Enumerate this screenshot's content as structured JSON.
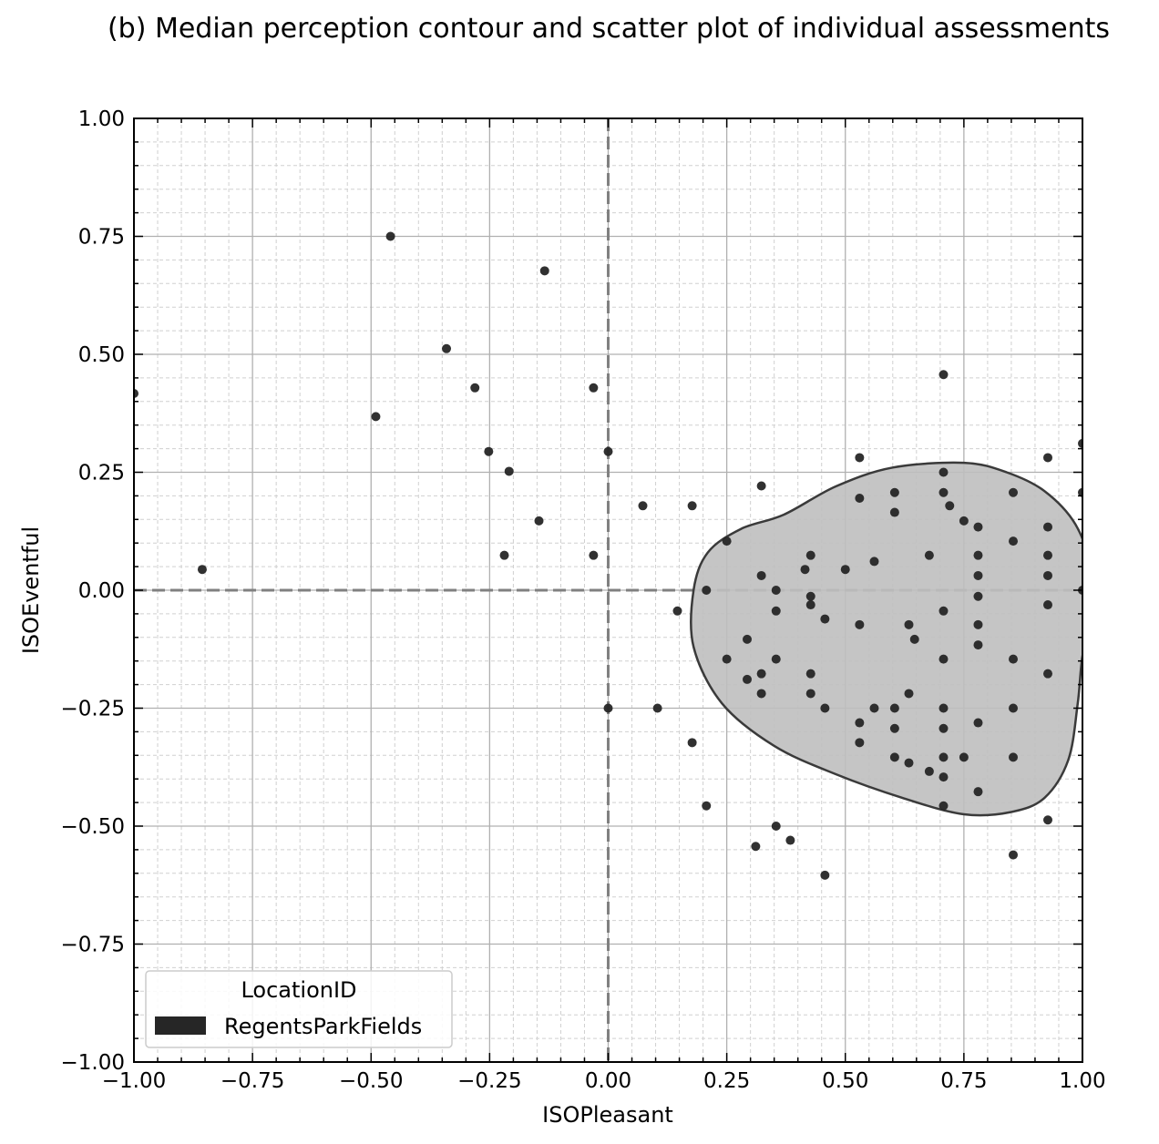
{
  "chart_data": {
    "type": "scatter",
    "title": "(b) Median perception contour and scatter plot of individual assessments",
    "xlabel": "ISOPleasant",
    "ylabel": "ISOEventful",
    "xlim": [
      -1.0,
      1.0
    ],
    "ylim": [
      -1.0,
      1.0
    ],
    "x_ticks": [
      -1.0,
      -0.75,
      -0.5,
      -0.25,
      0.0,
      0.25,
      0.5,
      0.75,
      1.0
    ],
    "y_ticks": [
      -1.0,
      -0.75,
      -0.5,
      -0.25,
      0.0,
      0.25,
      0.5,
      0.75,
      1.0
    ],
    "x_tick_labels": [
      "−1.00",
      "−0.75",
      "−0.50",
      "−0.25",
      "0.00",
      "0.25",
      "0.50",
      "0.75",
      "1.00"
    ],
    "y_tick_labels": [
      "−1.00",
      "−0.75",
      "−0.50",
      "−0.25",
      "0.00",
      "0.25",
      "0.50",
      "0.75",
      "1.00"
    ],
    "grid": true,
    "minor_grid": true,
    "reference_lines": {
      "x": 0.0,
      "y": 0.0,
      "style": "dashed"
    },
    "legend": {
      "title": "LocationID",
      "entries": [
        "RegentsParkFields"
      ],
      "placement": "lower-left"
    },
    "colors": {
      "points": "#262626",
      "contour_fill": "#bfbfbf",
      "contour_line": "#3a3a3a",
      "reference": "#808080"
    },
    "series": [
      {
        "name": "RegentsParkFields",
        "points": [
          [
            -1.0,
            0.417
          ],
          [
            -0.856,
            0.044
          ],
          [
            -0.459,
            0.75
          ],
          [
            -0.49,
            0.368
          ],
          [
            -0.341,
            0.512
          ],
          [
            -0.281,
            0.429
          ],
          [
            -0.252,
            0.294
          ],
          [
            -0.209,
            0.252
          ],
          [
            -0.219,
            0.074
          ],
          [
            -0.146,
            0.147
          ],
          [
            -0.134,
            0.677
          ],
          [
            -0.031,
            0.429
          ],
          [
            -0.031,
            0.074
          ],
          [
            0.0,
            0.294
          ],
          [
            0.0,
            -0.25
          ],
          [
            0.073,
            0.179
          ],
          [
            0.177,
            0.179
          ],
          [
            0.146,
            -0.044
          ],
          [
            0.104,
            -0.25
          ],
          [
            0.177,
            -0.323
          ],
          [
            0.207,
            -0.457
          ],
          [
            0.25,
            0.104
          ],
          [
            0.323,
            0.221
          ],
          [
            0.207,
            0.0
          ],
          [
            0.25,
            -0.146
          ],
          [
            0.293,
            -0.104
          ],
          [
            0.293,
            -0.189
          ],
          [
            0.323,
            0.031
          ],
          [
            0.323,
            -0.177
          ],
          [
            0.323,
            -0.219
          ],
          [
            0.354,
            0.0
          ],
          [
            0.354,
            -0.044
          ],
          [
            0.354,
            -0.146
          ],
          [
            0.354,
            -0.5
          ],
          [
            0.311,
            -0.543
          ],
          [
            0.384,
            -0.53
          ],
          [
            0.457,
            -0.604
          ],
          [
            0.415,
            0.044
          ],
          [
            0.427,
            0.074
          ],
          [
            0.427,
            -0.013
          ],
          [
            0.427,
            -0.031
          ],
          [
            0.427,
            -0.177
          ],
          [
            0.427,
            -0.219
          ],
          [
            0.457,
            -0.061
          ],
          [
            0.457,
            -0.25
          ],
          [
            0.5,
            0.044
          ],
          [
            0.53,
            0.281
          ],
          [
            0.53,
            0.195
          ],
          [
            0.53,
            -0.073
          ],
          [
            0.53,
            -0.281
          ],
          [
            0.53,
            -0.323
          ],
          [
            0.561,
            0.061
          ],
          [
            0.561,
            -0.25
          ],
          [
            0.604,
            0.207
          ],
          [
            0.604,
            0.165
          ],
          [
            0.604,
            -0.25
          ],
          [
            0.604,
            -0.293
          ],
          [
            0.604,
            -0.354
          ],
          [
            0.634,
            -0.073
          ],
          [
            0.634,
            -0.219
          ],
          [
            0.634,
            -0.366
          ],
          [
            0.646,
            -0.104
          ],
          [
            0.677,
            0.074
          ],
          [
            0.677,
            -0.384
          ],
          [
            0.707,
            0.457
          ],
          [
            0.707,
            0.25
          ],
          [
            0.707,
            0.207
          ],
          [
            0.707,
            -0.044
          ],
          [
            0.707,
            -0.146
          ],
          [
            0.707,
            -0.25
          ],
          [
            0.707,
            -0.293
          ],
          [
            0.707,
            -0.354
          ],
          [
            0.707,
            -0.396
          ],
          [
            0.707,
            -0.457
          ],
          [
            0.72,
            0.179
          ],
          [
            0.75,
            0.147
          ],
          [
            0.75,
            -0.354
          ],
          [
            0.78,
            0.134
          ],
          [
            0.78,
            0.074
          ],
          [
            0.78,
            0.031
          ],
          [
            0.78,
            -0.013
          ],
          [
            0.78,
            -0.073
          ],
          [
            0.78,
            -0.116
          ],
          [
            0.78,
            -0.281
          ],
          [
            0.78,
            -0.427
          ],
          [
            0.854,
            0.207
          ],
          [
            0.854,
            0.104
          ],
          [
            0.854,
            -0.146
          ],
          [
            0.854,
            -0.25
          ],
          [
            0.854,
            -0.354
          ],
          [
            0.854,
            -0.561
          ],
          [
            0.927,
            0.281
          ],
          [
            0.927,
            0.134
          ],
          [
            0.927,
            0.074
          ],
          [
            0.927,
            0.031
          ],
          [
            0.927,
            -0.031
          ],
          [
            0.927,
            -0.177
          ],
          [
            0.927,
            -0.487
          ],
          [
            1.0,
            0.311
          ],
          [
            1.0,
            0.207
          ],
          [
            1.0,
            0.0
          ]
        ]
      }
    ],
    "median_contour": [
      [
        0.75,
        0.27
      ],
      [
        0.84,
        0.25
      ],
      [
        0.92,
        0.21
      ],
      [
        0.985,
        0.14
      ],
      [
        1.02,
        0.04
      ],
      [
        1.02,
        -0.06
      ],
      [
        1.0,
        -0.14
      ],
      [
        0.99,
        -0.24
      ],
      [
        0.97,
        -0.36
      ],
      [
        0.92,
        -0.44
      ],
      [
        0.85,
        -0.47
      ],
      [
        0.75,
        -0.475
      ],
      [
        0.62,
        -0.44
      ],
      [
        0.48,
        -0.39
      ],
      [
        0.35,
        -0.33
      ],
      [
        0.24,
        -0.24
      ],
      [
        0.18,
        -0.12
      ],
      [
        0.18,
        0.0
      ],
      [
        0.21,
        0.08
      ],
      [
        0.28,
        0.13
      ],
      [
        0.37,
        0.16
      ],
      [
        0.48,
        0.22
      ],
      [
        0.6,
        0.26
      ]
    ]
  }
}
